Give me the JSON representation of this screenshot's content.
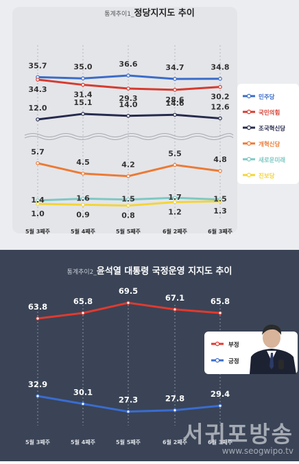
{
  "charts": {
    "chart1": {
      "title_prefix": "통계추이1_",
      "title": "정당지지도 추이",
      "categories": [
        "5월 3째주",
        "5월 4째주",
        "5월 5째주",
        "6월 2째주",
        "6월 3째주"
      ],
      "series": [
        {
          "name": "민주당",
          "color": "#3a6cc8",
          "values": [
            35.7,
            35.0,
            36.6,
            34.7,
            34.8
          ]
        },
        {
          "name": "국민의힘",
          "color": "#d63b2f",
          "values": [
            34.3,
            31.4,
            29.3,
            28.6,
            30.2
          ]
        },
        {
          "name": "조국혁신당",
          "color": "#262a4d",
          "values": [
            12.0,
            15.1,
            14.0,
            14.6,
            12.6
          ]
        },
        {
          "name": "개혁신당",
          "color": "#ec7a34",
          "values": [
            5.7,
            4.5,
            4.2,
            5.5,
            4.8
          ]
        },
        {
          "name": "새로운미래",
          "color": "#7ec8c3",
          "values": [
            1.4,
            1.6,
            1.5,
            1.7,
            1.5
          ]
        },
        {
          "name": "진보당",
          "color": "#f3d538",
          "values": [
            1.0,
            0.9,
            0.8,
            1.2,
            1.3
          ]
        }
      ]
    },
    "chart2": {
      "title_prefix": "통계추이2_",
      "title": "윤석열 대통령 국정운영 지지도 추이",
      "categories": [
        "5월 3째주",
        "5월 4째주",
        "5월 5째주",
        "6월 2째주",
        "6월 3째주"
      ],
      "series": [
        {
          "name": "부정",
          "color": "#e03a30",
          "values": [
            63.8,
            65.8,
            69.5,
            67.1,
            65.8
          ]
        },
        {
          "name": "긍정",
          "color": "#3a6cd0",
          "values": [
            32.9,
            30.1,
            27.3,
            27.8,
            29.4
          ]
        }
      ]
    }
  },
  "watermark": {
    "name": "서귀포방송",
    "url": "www.seogwipo.tv"
  }
}
